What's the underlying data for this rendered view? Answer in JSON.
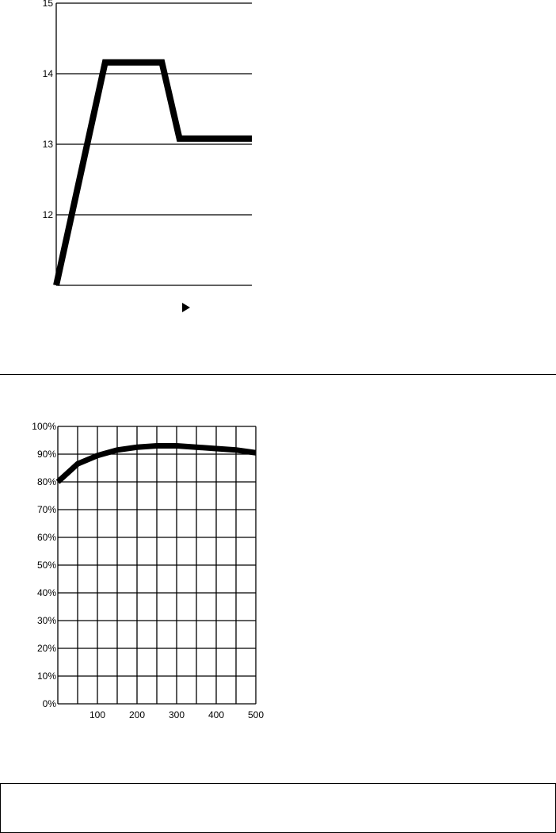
{
  "chart_data": [
    {
      "type": "line",
      "title": "",
      "xlabel": "",
      "ylabel": "",
      "ylim": [
        11,
        15
      ],
      "yticks": [
        "15",
        "14",
        "13",
        "12"
      ],
      "xlim": [
        0,
        100
      ],
      "grid": "horizontal",
      "x": [
        0,
        25,
        54,
        63,
        100
      ],
      "values": [
        11.0,
        14.16,
        14.16,
        13.08,
        13.08
      ],
      "annotation_icon": "play-triangle-icon"
    },
    {
      "type": "line",
      "title": "",
      "xlabel": "",
      "ylabel": "",
      "xlim": [
        0,
        500
      ],
      "ylim": [
        0,
        100
      ],
      "grid": "both",
      "xticks": [
        "100",
        "200",
        "300",
        "400",
        "500"
      ],
      "yticks": [
        "0%",
        "10%",
        "20%",
        "30%",
        "40%",
        "50%",
        "60%",
        "70%",
        "80%",
        "90%",
        "100%"
      ],
      "x": [
        0,
        50,
        100,
        150,
        200,
        250,
        300,
        350,
        400,
        450,
        500
      ],
      "values": [
        80,
        86.5,
        89.5,
        91.5,
        92.5,
        93,
        93,
        92.5,
        92,
        91.5,
        90.5
      ]
    }
  ],
  "colors": {
    "line": "#000000",
    "grid": "#000000"
  }
}
